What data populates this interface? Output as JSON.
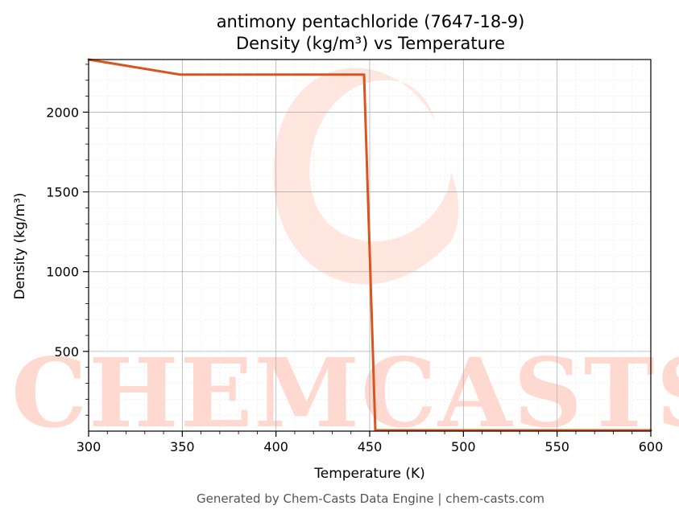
{
  "chart_data": {
    "type": "line",
    "title": "antimony pentachloride (7647-18-9)",
    "subtitle": "Density (kg/m³) vs Temperature",
    "xlabel": "Temperature (K)",
    "ylabel": "Density (kg/m³)",
    "xlim": [
      300,
      600
    ],
    "ylim": [
      0,
      2330
    ],
    "xticks": [
      300,
      350,
      400,
      450,
      500,
      550,
      600
    ],
    "yticks": [
      500,
      1000,
      1500,
      2000
    ],
    "xtick_labels": [
      "300",
      "350",
      "400",
      "450",
      "500",
      "550",
      "600"
    ],
    "ytick_labels": [
      "500",
      "1000",
      "1500",
      "2000"
    ],
    "grid": true,
    "series": [
      {
        "color": "#d9541e",
        "x": [
          300,
          349,
          447,
          453,
          500,
          600
        ],
        "y": [
          2330,
          2235,
          2235,
          5,
          5,
          5
        ]
      }
    ]
  },
  "watermark": {
    "text": "CHEMCASTS",
    "color": "#ffd9d0"
  },
  "footer": "Generated by Chem-Casts Data Engine | chem-casts.com"
}
